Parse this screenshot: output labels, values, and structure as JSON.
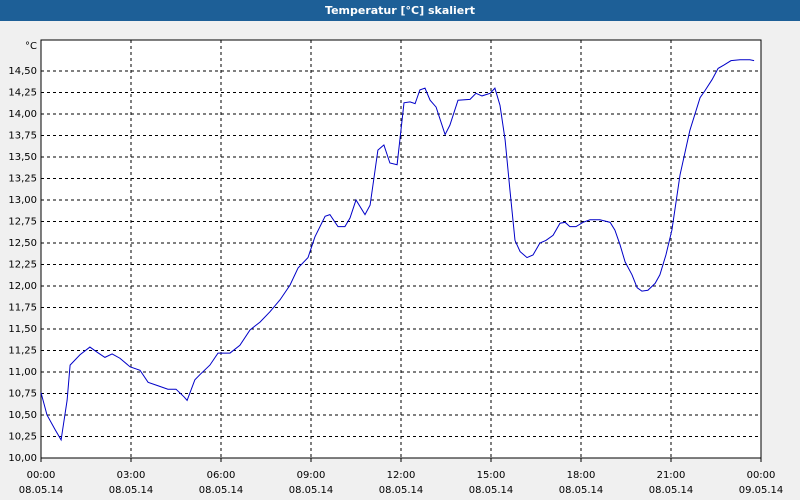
{
  "chart_data": {
    "type": "line",
    "title": "Temperatur [°C] skaliert",
    "y_unit": "°C",
    "color": "#0000c8",
    "grid": true,
    "x": [
      0,
      0.2,
      0.47,
      0.67,
      0.87,
      0.97,
      1.3,
      1.63,
      1.87,
      2.13,
      2.37,
      2.63,
      2.97,
      3.3,
      3.57,
      3.9,
      4.23,
      4.5,
      4.77,
      4.87,
      5.13,
      5.3,
      5.63,
      5.9,
      6.3,
      6.63,
      6.97,
      7.3,
      7.63,
      7.97,
      8.3,
      8.57,
      8.9,
      9.13,
      9.47,
      9.63,
      9.9,
      10.13,
      10.3,
      10.5,
      10.8,
      10.97,
      11.23,
      11.43,
      11.63,
      11.87,
      12.1,
      12.3,
      12.47,
      12.63,
      12.8,
      12.97,
      13.17,
      13.47,
      13.63,
      13.9,
      14.3,
      14.5,
      14.7,
      14.97,
      15.13,
      15.3,
      15.47,
      15.63,
      15.8,
      15.97,
      16.2,
      16.4,
      16.63,
      16.83,
      17.07,
      17.3,
      17.47,
      17.63,
      17.83,
      18.07,
      18.3,
      18.63,
      18.97,
      19.13,
      19.3,
      19.47,
      19.7,
      19.87,
      20.03,
      20.23,
      20.47,
      20.63,
      20.83,
      21.03,
      21.3,
      21.63,
      21.97,
      22.13,
      22.37,
      22.57,
      22.77,
      23.0,
      23.3,
      23.63,
      23.77
    ],
    "values": [
      10.76,
      10.5,
      10.33,
      10.21,
      10.67,
      11.08,
      11.2,
      11.29,
      11.23,
      11.17,
      11.21,
      11.16,
      11.06,
      11.02,
      10.88,
      10.84,
      10.8,
      10.8,
      10.71,
      10.67,
      10.91,
      10.97,
      11.08,
      11.22,
      11.22,
      11.31,
      11.49,
      11.58,
      11.7,
      11.84,
      12.01,
      12.21,
      12.33,
      12.57,
      12.81,
      12.83,
      12.69,
      12.69,
      12.79,
      13.0,
      12.83,
      12.94,
      13.58,
      13.64,
      13.43,
      13.41,
      14.13,
      14.14,
      14.12,
      14.28,
      14.3,
      14.16,
      14.08,
      13.76,
      13.87,
      14.16,
      14.17,
      14.24,
      14.21,
      14.24,
      14.3,
      14.1,
      13.7,
      13.12,
      12.53,
      12.4,
      12.33,
      12.36,
      12.5,
      12.53,
      12.59,
      12.73,
      12.74,
      12.69,
      12.69,
      12.74,
      12.77,
      12.77,
      12.74,
      12.65,
      12.48,
      12.28,
      12.13,
      11.98,
      11.94,
      11.95,
      12.03,
      12.13,
      12.36,
      12.65,
      13.29,
      13.81,
      14.19,
      14.27,
      14.4,
      14.53,
      14.57,
      14.62,
      14.63,
      14.63,
      14.62
    ],
    "xlim": [
      0,
      24
    ],
    "xticks": [
      {
        "value": 0,
        "label": "00:00"
      },
      {
        "value": 3,
        "label": "03:00"
      },
      {
        "value": 6,
        "label": "06:00"
      },
      {
        "value": 9,
        "label": "09:00"
      },
      {
        "value": 12,
        "label": "12:00"
      },
      {
        "value": 15,
        "label": "15:00"
      },
      {
        "value": 18,
        "label": "18:00"
      },
      {
        "value": 21,
        "label": "21:00"
      },
      {
        "value": 24,
        "label": "00:00"
      }
    ],
    "xtick_dates": [
      "08.05.14",
      "08.05.14",
      "08.05.14",
      "08.05.14",
      "08.05.14",
      "08.05.14",
      "08.05.14",
      "08.05.14",
      "09.05.14"
    ],
    "ylim": [
      10,
      14.86
    ],
    "yticks": [
      {
        "value": 10,
        "label": "10,00"
      },
      {
        "value": 10.25,
        "label": "10,25"
      },
      {
        "value": 10.5,
        "label": "10,50"
      },
      {
        "value": 10.75,
        "label": "10,75"
      },
      {
        "value": 11,
        "label": "11,00"
      },
      {
        "value": 11.25,
        "label": "11,25"
      },
      {
        "value": 11.5,
        "label": "11,50"
      },
      {
        "value": 11.75,
        "label": "11,75"
      },
      {
        "value": 12,
        "label": "12,00"
      },
      {
        "value": 12.25,
        "label": "12,25"
      },
      {
        "value": 12.5,
        "label": "12,50"
      },
      {
        "value": 12.75,
        "label": "12,75"
      },
      {
        "value": 13,
        "label": "13,00"
      },
      {
        "value": 13.25,
        "label": "13,25"
      },
      {
        "value": 13.5,
        "label": "13,50"
      },
      {
        "value": 13.75,
        "label": "13,75"
      },
      {
        "value": 14,
        "label": "14,00"
      },
      {
        "value": 14.25,
        "label": "14,25"
      },
      {
        "value": 14.5,
        "label": "14,50"
      }
    ]
  }
}
